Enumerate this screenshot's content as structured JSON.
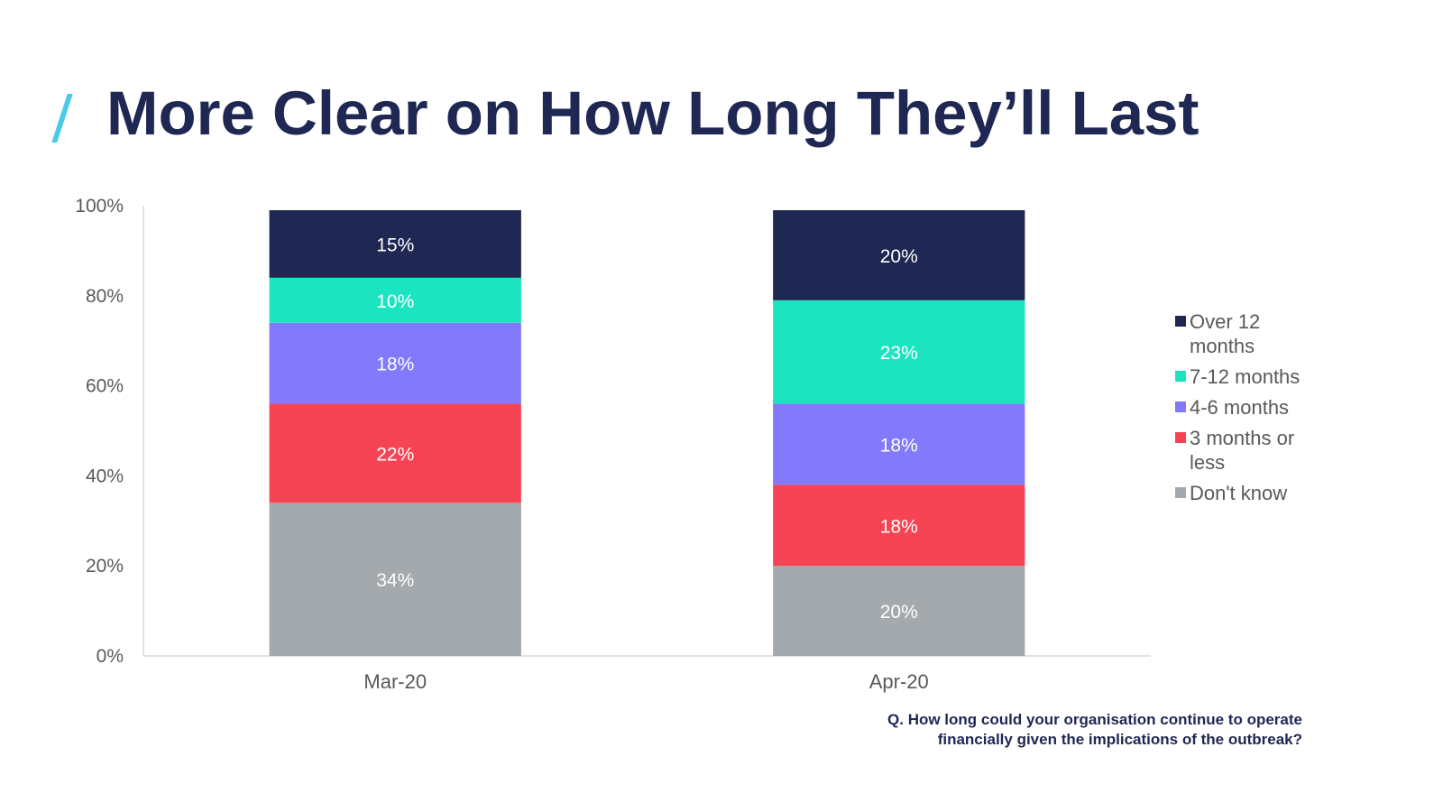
{
  "page": {
    "title": "More Clear on How Long They’ll Last",
    "accent_color": "#4cc9e8",
    "title_color": "#1f2753"
  },
  "question": {
    "line1": "Q. How long could your organisation continue to operate",
    "line2": "financially given the implications of the outbreak?"
  },
  "chart_data": {
    "type": "bar",
    "stacked": true,
    "percent": true,
    "categories": [
      "Mar-20",
      "Apr-20"
    ],
    "series": [
      {
        "name": "Don't know",
        "values": [
          34,
          20
        ],
        "labels": [
          "34%",
          "20%"
        ],
        "color": "#a3a9ac"
      },
      {
        "name": "3 months or less",
        "values": [
          22,
          18
        ],
        "labels": [
          "22%",
          "18%"
        ],
        "color": "#f64455"
      },
      {
        "name": "4-6 months",
        "values": [
          18,
          18
        ],
        "labels": [
          "18%",
          "18%"
        ],
        "color": "#8279fb"
      },
      {
        "name": "7-12 months",
        "values": [
          10,
          23
        ],
        "labels": [
          "10%",
          "23%"
        ],
        "color": "#1ce4c1"
      },
      {
        "name": "Over 12 months",
        "values": [
          15,
          20
        ],
        "labels": [
          "15%",
          "20%"
        ],
        "color": "#1f2753"
      }
    ],
    "ylim": [
      0,
      100
    ],
    "yticks": [
      "0%",
      "20%",
      "40%",
      "60%",
      "80%",
      "100%"
    ],
    "grid": false,
    "legend_position": "right"
  },
  "legend": {
    "items": [
      {
        "label": "Over 12 months",
        "color": "#1f2753"
      },
      {
        "label": "7-12 months",
        "color": "#1ce4c1"
      },
      {
        "label": "4-6 months",
        "color": "#8279fb"
      },
      {
        "label": "3 months or less",
        "color": "#f64455"
      },
      {
        "label": "Don't know",
        "color": "#a3a9ac"
      }
    ]
  }
}
